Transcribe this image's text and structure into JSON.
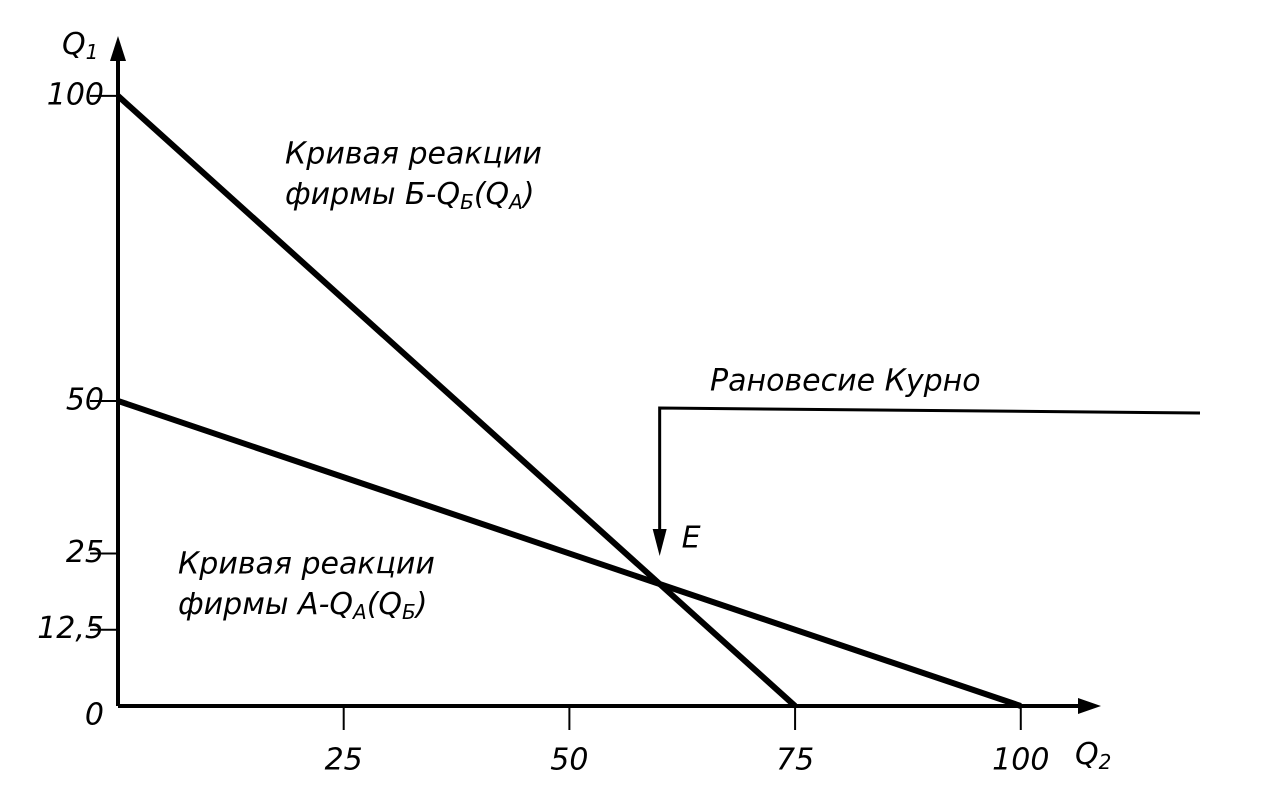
{
  "chart_data": {
    "type": "line",
    "xlabel": [
      "Q",
      "2"
    ],
    "ylabel": [
      "Q",
      "1"
    ],
    "xlim": [
      0,
      108
    ],
    "ylim": [
      0,
      109
    ],
    "xticks": [
      25,
      50,
      75,
      100
    ],
    "yticks": [
      0,
      {
        "value": 12.5,
        "label": "12,5"
      },
      25,
      50,
      100
    ],
    "series": [
      {
        "color": "#000000",
        "x": [
          0,
          75
        ],
        "values": [
          100,
          0
        ],
        "label": {
          "line1": "Кривая реакции",
          "line2": [
            "фирмы Б-Q",
            "Б",
            "(Q",
            "A",
            ")"
          ]
        }
      },
      {
        "color": "#000000",
        "x": [
          0,
          100
        ],
        "values": [
          50,
          0
        ],
        "label": {
          "line1": "Кривая реакции",
          "line2": [
            "фирмы A-Q",
            "A",
            "(Q",
            "Б",
            ")"
          ]
        }
      }
    ],
    "equilibrium": {
      "title": "Рановесие Курно",
      "label": "E",
      "x": 60,
      "y": 20
    }
  }
}
